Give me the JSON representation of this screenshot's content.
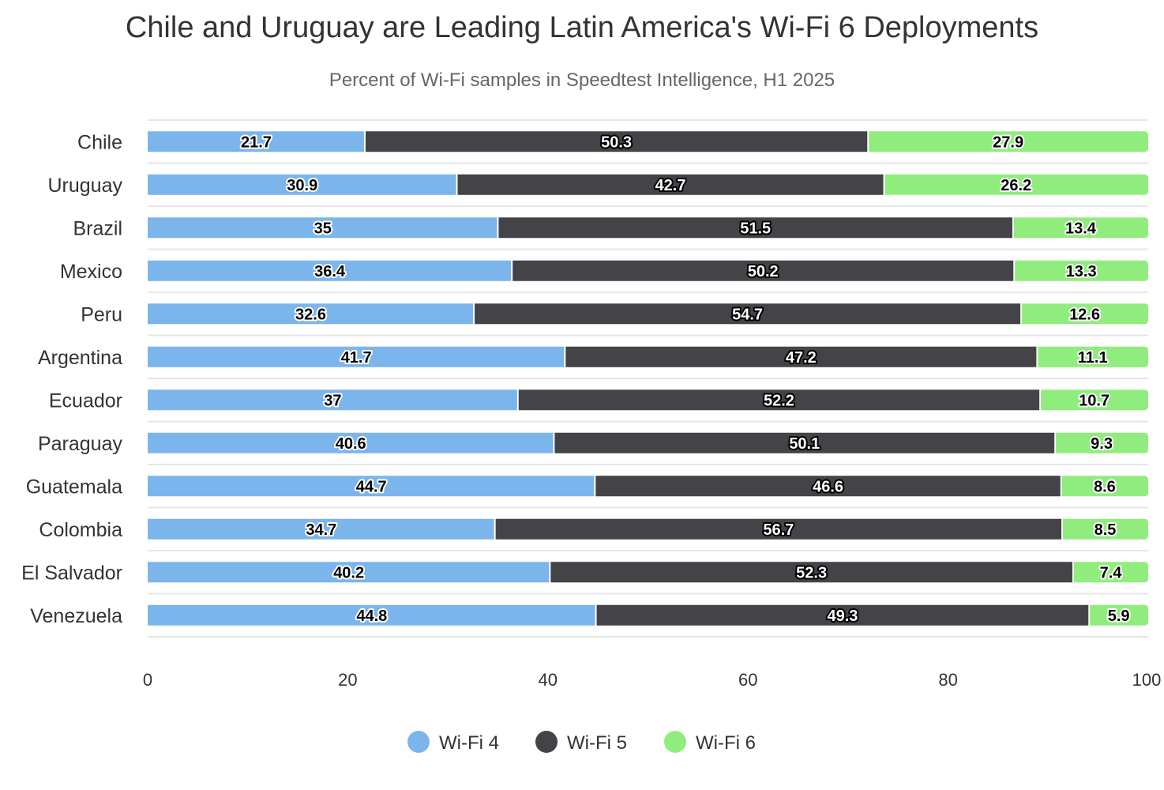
{
  "chart_data": {
    "type": "bar",
    "orientation": "horizontal",
    "stacked": true,
    "title": "Chile and Uruguay are Leading Latin America's Wi-Fi 6 Deployments",
    "subtitle": "Percent of Wi-Fi samples in Speedtest Intelligence, H1 2025",
    "xlabel": "",
    "ylabel": "",
    "xlim": [
      0,
      100
    ],
    "x_ticks": [
      "0",
      "20",
      "40",
      "60",
      "80",
      "100"
    ],
    "grid": true,
    "legend_position": "bottom-center",
    "categories": [
      "Chile",
      "Uruguay",
      "Brazil",
      "Mexico",
      "Peru",
      "Argentina",
      "Ecuador",
      "Paraguay",
      "Guatemala",
      "Colombia",
      "El Salvador",
      "Venezuela"
    ],
    "series": [
      {
        "name": "Wi-Fi 4",
        "color": "#7cb5ec",
        "values": [
          21.7,
          30.9,
          35,
          36.4,
          32.6,
          41.7,
          37,
          40.6,
          44.7,
          34.7,
          40.2,
          44.8
        ]
      },
      {
        "name": "Wi-Fi 5",
        "color": "#434348",
        "values": [
          50.3,
          42.7,
          51.5,
          50.2,
          54.7,
          47.2,
          52.2,
          50.1,
          46.6,
          56.7,
          52.3,
          49.3
        ]
      },
      {
        "name": "Wi-Fi 6",
        "color": "#90ed7d",
        "values": [
          27.9,
          26.2,
          13.4,
          13.3,
          12.6,
          11.1,
          10.7,
          9.3,
          8.6,
          8.5,
          7.4,
          5.9
        ]
      }
    ]
  }
}
